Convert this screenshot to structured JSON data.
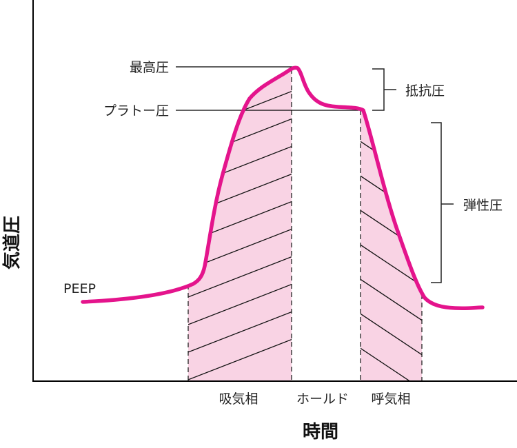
{
  "diagram": {
    "y_axis_label": "気道圧",
    "x_axis_label": "時間",
    "phases": {
      "inspiration": "吸気相",
      "hold": "ホールド",
      "expiration": "呼気相"
    },
    "levels": {
      "peak": "最高圧",
      "plateau": "プラトー圧",
      "peep": "PEEP"
    },
    "components": {
      "resistance": "抵抗圧",
      "elastic": "弾性圧"
    },
    "colors": {
      "curve": "#e4148c",
      "shade": "#f9d3e4",
      "line": "#000000",
      "hatch": "#111111"
    }
  }
}
